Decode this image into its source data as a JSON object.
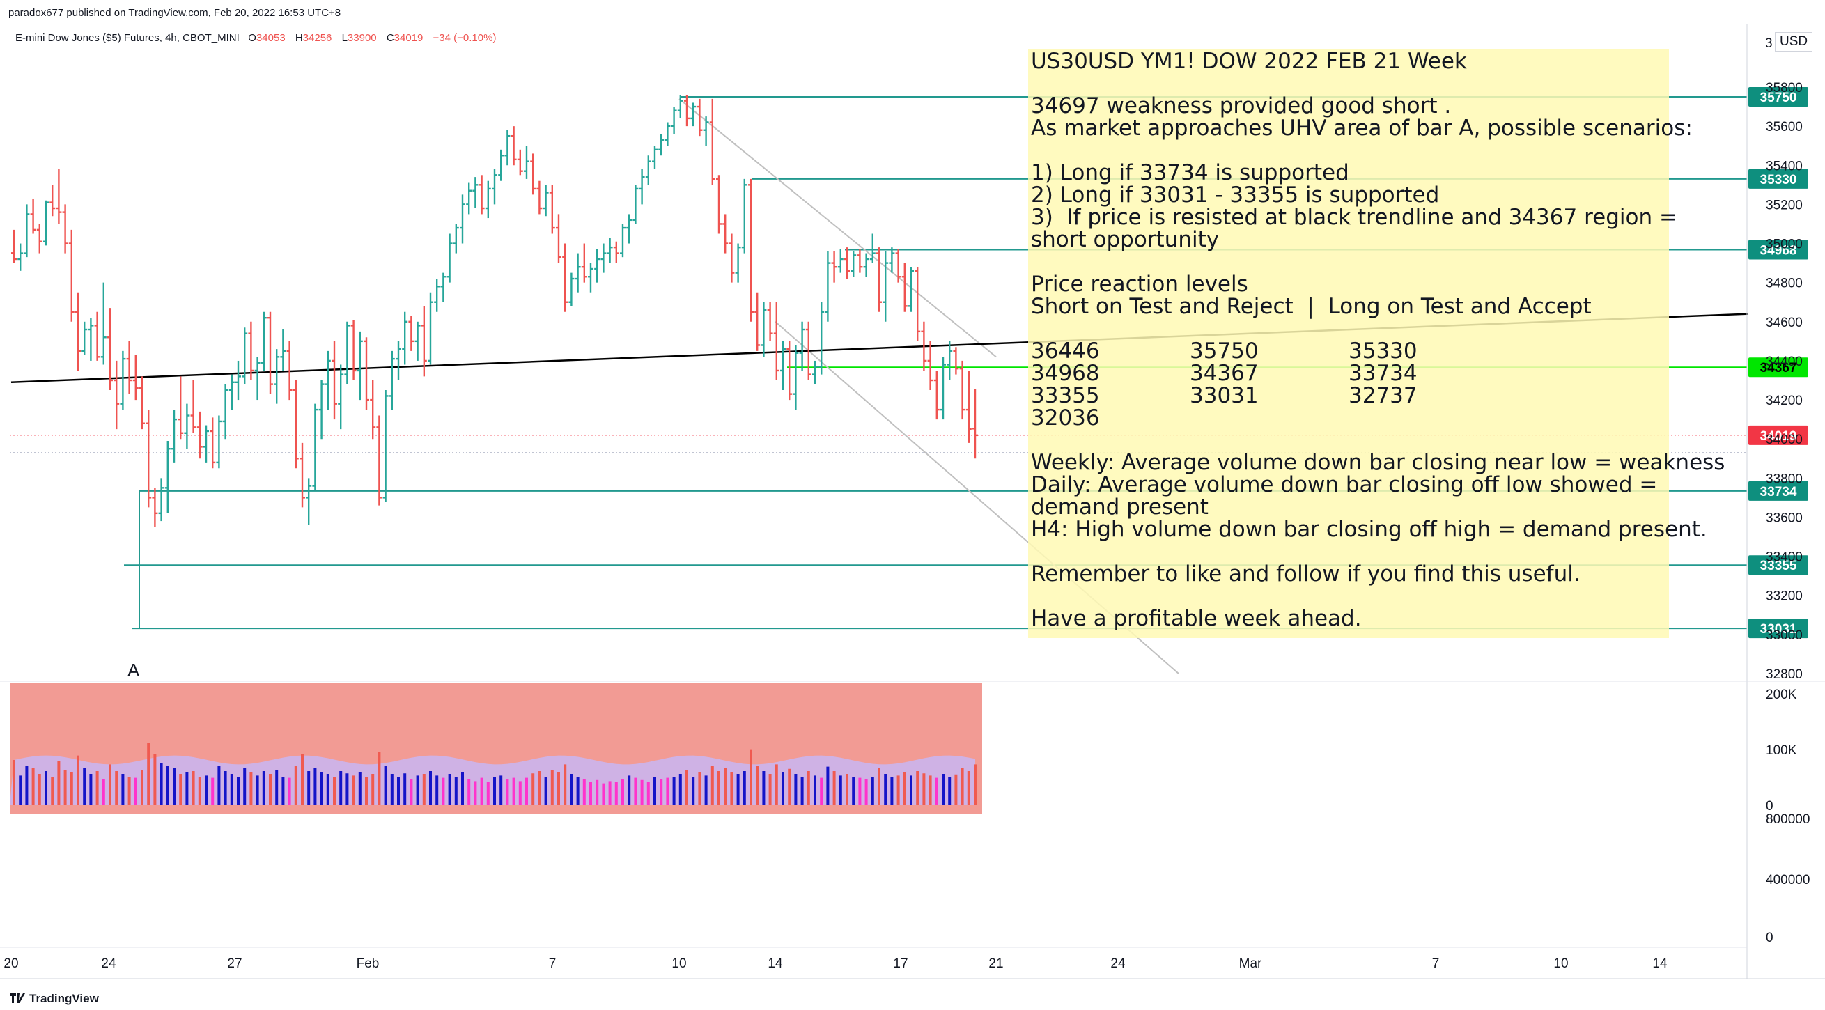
{
  "header": {
    "publisher": "paradox677 published on TradingView.com, Feb 20, 2022 16:53 UTC+8",
    "symbol": "E-mini Dow Jones ($5) Futures, 4h, CBOT_MINI",
    "open_label": "O",
    "open": "34053",
    "high_label": "H",
    "high": "34256",
    "low_label": "L",
    "low": "33900",
    "close_label": "C",
    "close": "34019",
    "change": "−34 (−0.10%)"
  },
  "currency": "USD",
  "axis_cut_label": "3",
  "annotation_a": "A",
  "note": {
    "title": "US30USD YM1! DOW 2022 FEB 21 Week",
    "line1": "34697 weakness provided good short .",
    "line2": "As market approaches UHV area of bar A, possible scenarios:",
    "s1": "1) Long if 33734 is supported",
    "s2": "2) Long if 33031 - 33355 is supported",
    "s3a": "3)  If price is resisted at black trendline and 34367 region =",
    "s3b": "short opportunity",
    "levels_title": "Price reaction levels",
    "levels_sub": "Short on Test and Reject  |  Long on Test and Accept",
    "levels": [
      [
        "36446",
        "35750",
        "35330"
      ],
      [
        "34968",
        "34367",
        "33734"
      ],
      [
        "33355",
        "33031",
        "32737"
      ],
      [
        "32036",
        "",
        ""
      ]
    ],
    "weekly": "Weekly: Average volume down bar closing near low = weakness",
    "daily_a": "Daily: Average volume down bar closing off low showed =",
    "daily_b": "demand present",
    "h4": "H4: High volume down bar closing off high = demand present.",
    "remember": "Remember to like and follow if you find this useful.",
    "closing": "Have a profitable week ahead."
  },
  "footer": {
    "brand": "TradingView"
  },
  "colors": {
    "up": "#26a69a",
    "down": "#ef5350",
    "level": "#22998f",
    "green_level": "#00e600",
    "trend_black": "#000000",
    "channel": "#c0c0c0",
    "last_price": "#f23645",
    "vol_bg": "#f29b94",
    "vol_blue": "#1414c8",
    "vol_magenta": "#ff33cc",
    "vol_red": "#f05a50"
  },
  "chart_data": {
    "type": "candlestick-ohlc",
    "timeframe": "4h",
    "price_axis": {
      "ylim": [
        32800,
        35900
      ],
      "ticks": [
        32800,
        33000,
        33200,
        33400,
        33600,
        33800,
        34000,
        34200,
        34400,
        34600,
        34800,
        35000,
        35200,
        35400,
        35600,
        35800
      ],
      "tick_labels": [
        "32800",
        "33000",
        "33200",
        "33400",
        "33600",
        "33800",
        "34000",
        "34200",
        "34400",
        "34600",
        "34800",
        "35000",
        "35200",
        "35400",
        "35600",
        "35800"
      ]
    },
    "x_axis_labels": [
      "20",
      "24",
      "27",
      "Feb",
      "7",
      "10",
      "14",
      "17",
      "21",
      "24",
      "Mar",
      "7",
      "10",
      "14"
    ],
    "horizontal_levels": [
      {
        "price": 35750,
        "label": "35750",
        "color": "#22998f"
      },
      {
        "price": 35330,
        "label": "35330",
        "color": "#22998f"
      },
      {
        "price": 34968,
        "label": "34968",
        "color": "#22998f"
      },
      {
        "price": 34367,
        "label": "34367",
        "color": "#00e600"
      },
      {
        "price": 33734,
        "label": "33734",
        "color": "#22998f"
      },
      {
        "price": 33355,
        "label": "33355",
        "color": "#22998f"
      },
      {
        "price": 33031,
        "label": "33031",
        "color": "#22998f"
      }
    ],
    "last_price": {
      "price": 34019,
      "label": "34019"
    },
    "trendline": {
      "from": {
        "date": "Jan 20",
        "price": 34290
      },
      "to": {
        "date": "Mar 21",
        "price": 34640
      }
    },
    "channel_upper": {
      "from": {
        "date": "Feb 10",
        "price": 35740
      },
      "to": {
        "date": "Feb 21",
        "price": 34420
      }
    },
    "channel_lower": {
      "from": {
        "date": "Feb 14",
        "price": 34600
      },
      "to": {
        "date": "Mar 1",
        "price": 32800
      }
    },
    "bars": [
      [
        34951,
        35070,
        34900,
        34920
      ],
      [
        34920,
        35000,
        34860,
        34950
      ],
      [
        34950,
        35200,
        34930,
        35150
      ],
      [
        35150,
        35230,
        35050,
        35070
      ],
      [
        35070,
        35100,
        34950,
        35010
      ],
      [
        35010,
        35220,
        34990,
        35210
      ],
      [
        35210,
        35300,
        35140,
        35180
      ],
      [
        35180,
        35380,
        35100,
        35160
      ],
      [
        35160,
        35200,
        34950,
        35000
      ],
      [
        35000,
        35070,
        34600,
        34650
      ],
      [
        34650,
        34750,
        34350,
        34450
      ],
      [
        34450,
        34600,
        34430,
        34560
      ],
      [
        34560,
        34620,
        34400,
        34580
      ],
      [
        34580,
        34650,
        34400,
        34420
      ],
      [
        34420,
        34800,
        34380,
        34520
      ],
      [
        34520,
        34670,
        34250,
        34300
      ],
      [
        34300,
        34400,
        34050,
        34180
      ],
      [
        34180,
        34450,
        34150,
        34410
      ],
      [
        34410,
        34500,
        34230,
        34300
      ],
      [
        34300,
        34430,
        34200,
        34260
      ],
      [
        34260,
        34320,
        34050,
        34080
      ],
      [
        34080,
        34150,
        33650,
        33700
      ],
      [
        33700,
        33750,
        33550,
        33620
      ],
      [
        33620,
        33800,
        33580,
        33750
      ],
      [
        33750,
        33990,
        33620,
        33950
      ],
      [
        33950,
        34150,
        33880,
        34100
      ],
      [
        34100,
        34320,
        34000,
        34030
      ],
      [
        34030,
        34180,
        33950,
        34120
      ],
      [
        34120,
        34300,
        34030,
        34060
      ],
      [
        34060,
        34140,
        33900,
        33960
      ],
      [
        33960,
        34070,
        33880,
        34040
      ],
      [
        34040,
        34110,
        33850,
        33880
      ],
      [
        33880,
        34120,
        33850,
        34090
      ],
      [
        34090,
        34280,
        34000,
        34250
      ],
      [
        34250,
        34330,
        34150,
        34290
      ],
      [
        34290,
        34400,
        34200,
        34320
      ],
      [
        34320,
        34570,
        34280,
        34540
      ],
      [
        34540,
        34600,
        34300,
        34350
      ],
      [
        34350,
        34420,
        34200,
        34390
      ],
      [
        34390,
        34650,
        34350,
        34620
      ],
      [
        34620,
        34650,
        34230,
        34280
      ],
      [
        34280,
        34460,
        34180,
        34420
      ],
      [
        34420,
        34560,
        34350,
        34450
      ],
      [
        34450,
        34500,
        34200,
        34250
      ],
      [
        34250,
        34300,
        33850,
        33900
      ],
      [
        33900,
        33980,
        33650,
        33700
      ],
      [
        33700,
        33800,
        33560,
        33760
      ],
      [
        33760,
        34180,
        33740,
        34150
      ],
      [
        34150,
        34300,
        34000,
        34280
      ],
      [
        34280,
        34450,
        34150,
        34400
      ],
      [
        34400,
        34500,
        34100,
        34180
      ],
      [
        34180,
        34380,
        34050,
        34330
      ],
      [
        34330,
        34600,
        34280,
        34580
      ],
      [
        34580,
        34610,
        34300,
        34350
      ],
      [
        34350,
        34550,
        34200,
        34500
      ],
      [
        34500,
        34520,
        34150,
        34200
      ],
      [
        34200,
        34300,
        34000,
        34060
      ],
      [
        34060,
        34120,
        33660,
        33700
      ],
      [
        33700,
        34250,
        33680,
        34220
      ],
      [
        34220,
        34450,
        34150,
        34410
      ],
      [
        34410,
        34500,
        34300,
        34460
      ],
      [
        34460,
        34650,
        34380,
        34600
      ],
      [
        34600,
        34630,
        34450,
        34500
      ],
      [
        34500,
        34600,
        34400,
        34580
      ],
      [
        34580,
        34680,
        34320,
        34400
      ],
      [
        34400,
        34750,
        34380,
        34700
      ],
      [
        34700,
        34820,
        34650,
        34780
      ],
      [
        34780,
        34850,
        34700,
        34830
      ],
      [
        34830,
        35050,
        34800,
        35000
      ],
      [
        35000,
        35100,
        34950,
        35080
      ],
      [
        35080,
        35250,
        35000,
        35200
      ],
      [
        35200,
        35310,
        35150,
        35270
      ],
      [
        35270,
        35340,
        35180,
        35300
      ],
      [
        35300,
        35350,
        35150,
        35180
      ],
      [
        35180,
        35320,
        35130,
        35280
      ],
      [
        35280,
        35380,
        35200,
        35350
      ],
      [
        35350,
        35480,
        35320,
        35450
      ],
      [
        35450,
        35580,
        35400,
        35550
      ],
      [
        35550,
        35600,
        35400,
        35430
      ],
      [
        35430,
        35480,
        35350,
        35370
      ],
      [
        35370,
        35500,
        35330,
        35420
      ],
      [
        35420,
        35460,
        35250,
        35280
      ],
      [
        35280,
        35320,
        35150,
        35180
      ],
      [
        35180,
        35300,
        35140,
        35260
      ],
      [
        35260,
        35300,
        35050,
        35080
      ],
      [
        35080,
        35150,
        34900,
        34930
      ],
      [
        34930,
        35000,
        34650,
        34700
      ],
      [
        34700,
        34850,
        34680,
        34820
      ],
      [
        34820,
        34950,
        34750,
        34880
      ],
      [
        34880,
        35000,
        34800,
        34830
      ],
      [
        34830,
        34900,
        34750,
        34870
      ],
      [
        34870,
        34970,
        34800,
        34920
      ],
      [
        34920,
        35000,
        34850,
        34950
      ],
      [
        34950,
        35030,
        34900,
        34980
      ],
      [
        34980,
        35010,
        34900,
        34950
      ],
      [
        34950,
        35100,
        34930,
        35080
      ],
      [
        35080,
        35150,
        35000,
        35120
      ],
      [
        35120,
        35300,
        35100,
        35280
      ],
      [
        35280,
        35380,
        35200,
        35340
      ],
      [
        35340,
        35450,
        35300,
        35420
      ],
      [
        35420,
        35500,
        35380,
        35480
      ],
      [
        35480,
        35560,
        35450,
        35530
      ],
      [
        35530,
        35620,
        35500,
        35600
      ],
      [
        35600,
        35700,
        35560,
        35680
      ],
      [
        35680,
        35760,
        35640,
        35730
      ],
      [
        35730,
        35760,
        35600,
        35640
      ],
      [
        35640,
        35720,
        35600,
        35700
      ],
      [
        35700,
        35740,
        35550,
        35580
      ],
      [
        35580,
        35650,
        35500,
        35620
      ],
      [
        35620,
        35740,
        35300,
        35330
      ],
      [
        35330,
        35350,
        35050,
        35100
      ],
      [
        35100,
        35150,
        34950,
        35000
      ],
      [
        35000,
        35050,
        34800,
        34850
      ],
      [
        34850,
        35000,
        34800,
        34980
      ],
      [
        34980,
        35330,
        34950,
        35300
      ],
      [
        35300,
        35330,
        34600,
        34650
      ],
      [
        34650,
        34750,
        34450,
        34480
      ],
      [
        34480,
        34700,
        34420,
        34660
      ],
      [
        34660,
        34700,
        34500,
        34540
      ],
      [
        34540,
        34700,
        34300,
        34350
      ],
      [
        34350,
        34500,
        34250,
        34460
      ],
      [
        34460,
        34500,
        34200,
        34230
      ],
      [
        34230,
        34480,
        34150,
        34440
      ],
      [
        34440,
        34600,
        34350,
        34560
      ],
      [
        34560,
        34600,
        34300,
        34330
      ],
      [
        34330,
        34400,
        34280,
        34370
      ],
      [
        34370,
        34700,
        34330,
        34650
      ],
      [
        34650,
        34960,
        34600,
        34900
      ],
      [
        34900,
        34960,
        34800,
        34880
      ],
      [
        34880,
        34970,
        34850,
        34920
      ],
      [
        34920,
        34980,
        34820,
        34860
      ],
      [
        34860,
        34960,
        34830,
        34940
      ],
      [
        34940,
        34970,
        34850,
        34880
      ],
      [
        34880,
        34950,
        34830,
        34920
      ],
      [
        34920,
        35050,
        34900,
        34950
      ],
      [
        34950,
        34980,
        34650,
        34700
      ],
      [
        34700,
        34960,
        34600,
        34900
      ],
      [
        34900,
        34980,
        34850,
        34950
      ],
      [
        34950,
        34970,
        34800,
        34830
      ],
      [
        34830,
        34900,
        34650,
        34680
      ],
      [
        34680,
        34880,
        34650,
        34860
      ],
      [
        34860,
        34880,
        34500,
        34550
      ],
      [
        34550,
        34600,
        34350,
        34400
      ],
      [
        34400,
        34500,
        34250,
        34300
      ],
      [
        34300,
        34350,
        34100,
        34150
      ],
      [
        34150,
        34420,
        34100,
        34380
      ],
      [
        34380,
        34500,
        34300,
        34450
      ],
      [
        34450,
        34470,
        34330,
        34360
      ],
      [
        34360,
        34400,
        34100,
        34150
      ],
      [
        34150,
        34350,
        33980,
        34050
      ],
      [
        34053,
        34256,
        33900,
        34019
      ]
    ],
    "volume_axis": {
      "ylim": [
        0,
        200000
      ],
      "tick_labels": [
        "200K",
        "100K",
        "0"
      ]
    },
    "volume_axis_lower": {
      "tick_labels": [
        "800000",
        "400000",
        "0"
      ]
    },
    "volume": [
      80,
      52,
      70,
      65,
      55,
      60,
      50,
      78,
      62,
      58,
      88,
      66,
      55,
      60,
      45,
      72,
      60,
      55,
      50,
      48,
      62,
      110,
      90,
      75,
      70,
      65,
      55,
      58,
      60,
      50,
      52,
      48,
      70,
      60,
      55,
      50,
      65,
      58,
      52,
      60,
      55,
      62,
      50,
      48,
      70,
      90,
      60,
      66,
      58,
      55,
      50,
      60,
      56,
      52,
      58,
      50,
      55,
      95,
      70,
      55,
      50,
      56,
      45,
      52,
      55,
      60,
      52,
      48,
      55,
      50,
      58,
      45,
      42,
      48,
      40,
      50,
      52,
      46,
      48,
      42,
      48,
      56,
      60,
      50,
      62,
      58,
      72,
      55,
      50,
      46,
      40,
      44,
      38,
      42,
      40,
      46,
      52,
      48,
      44,
      40,
      50,
      46,
      48,
      50,
      55,
      62,
      50,
      58,
      52,
      70,
      60,
      66,
      58,
      55,
      60,
      98,
      70,
      60,
      55,
      72,
      58,
      64,
      55,
      50,
      60,
      52,
      48,
      68,
      60,
      52,
      55,
      50,
      48,
      46,
      50,
      66,
      55,
      50,
      52,
      58,
      52,
      60,
      56,
      52,
      48,
      55,
      50,
      54,
      66,
      60,
      72
    ]
  }
}
